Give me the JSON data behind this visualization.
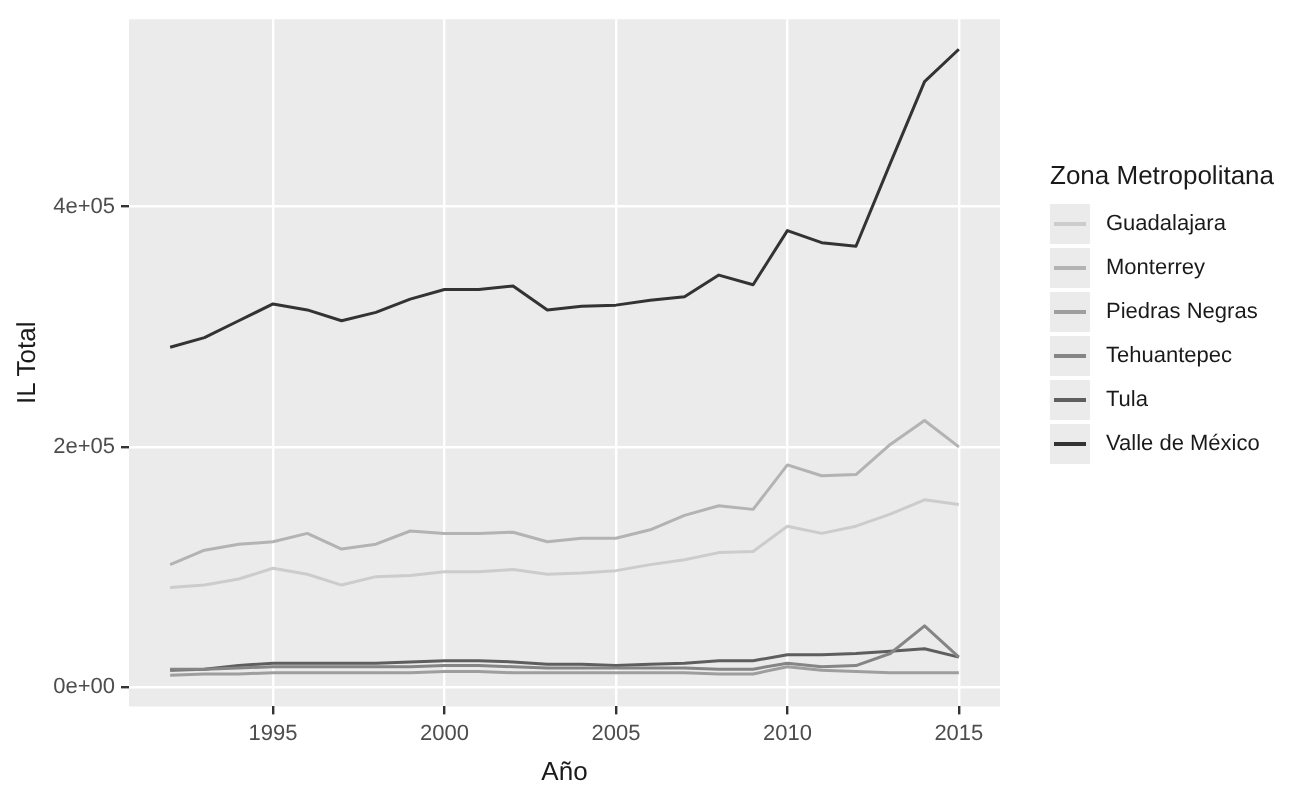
{
  "chart_data": {
    "type": "line",
    "xlabel": "Año",
    "ylabel": "IL Total",
    "legend_title": "Zona Metropolitana",
    "legend": "right",
    "grid": true,
    "marker": "none",
    "line_style": "solid",
    "x": [
      1992,
      1993,
      1994,
      1995,
      1996,
      1997,
      1998,
      1999,
      2000,
      2001,
      2002,
      2003,
      2004,
      2005,
      2006,
      2007,
      2008,
      2009,
      2010,
      2011,
      2012,
      2013,
      2014,
      2015
    ],
    "xlim": [
      1990.8,
      2016.2
    ],
    "xticks": [
      1995,
      2000,
      2005,
      2010,
      2015
    ],
    "ylim": [
      -16000,
      556000
    ],
    "yticks": [
      {
        "value": 0,
        "label": "0e+00"
      },
      {
        "value": 200000,
        "label": "2e+05"
      },
      {
        "value": 400000,
        "label": "4e+05"
      }
    ],
    "series": [
      {
        "name": "Guadalajara",
        "color": "#cccccc",
        "values": [
          83000,
          85000,
          90000,
          99000,
          94000,
          85000,
          92000,
          93000,
          96000,
          96000,
          98000,
          94000,
          95000,
          97000,
          102000,
          106000,
          112000,
          113000,
          134000,
          128000,
          134000,
          144000,
          156000,
          152000
        ]
      },
      {
        "name": "Monterrey",
        "color": "#b3b3b3",
        "values": [
          102000,
          114000,
          119000,
          121000,
          128000,
          115000,
          119000,
          130000,
          128000,
          128000,
          129000,
          121000,
          124000,
          124000,
          131000,
          143000,
          151000,
          148000,
          185000,
          176000,
          177000,
          202000,
          222000,
          200000
        ]
      },
      {
        "name": "Piedras Negras",
        "color": "#9e9e9e",
        "values": [
          10000,
          11000,
          11000,
          12000,
          12000,
          12000,
          12000,
          12000,
          13000,
          13000,
          12000,
          12000,
          12000,
          12000,
          12000,
          12000,
          11000,
          11000,
          17000,
          14000,
          13000,
          12000,
          12000,
          12000
        ]
      },
      {
        "name": "Tehuantepec",
        "color": "#858585",
        "values": [
          15000,
          15000,
          16000,
          17000,
          17000,
          17000,
          17000,
          17000,
          18000,
          18000,
          17000,
          16000,
          16000,
          16000,
          16000,
          16000,
          15000,
          15000,
          20000,
          17000,
          18000,
          28000,
          51000,
          25000
        ]
      },
      {
        "name": "Tula",
        "color": "#5e5e5e",
        "values": [
          14000,
          15000,
          18000,
          20000,
          20000,
          20000,
          20000,
          21000,
          22000,
          22000,
          21000,
          19000,
          19000,
          18000,
          19000,
          20000,
          22000,
          22000,
          27000,
          27000,
          28000,
          30000,
          32000,
          25000
        ]
      },
      {
        "name": "Valle de México",
        "color": "#333333",
        "values": [
          283000,
          291000,
          305000,
          319000,
          314000,
          305000,
          312000,
          323000,
          331000,
          331000,
          334000,
          314000,
          317000,
          318000,
          322000,
          325000,
          343000,
          335000,
          380000,
          370000,
          367000,
          436000,
          504000,
          531000
        ]
      }
    ]
  }
}
